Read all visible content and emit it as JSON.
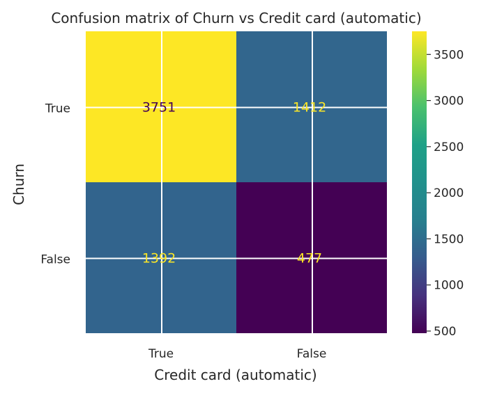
{
  "chart_data": {
    "type": "heatmap",
    "title": "Confusion matrix of Churn vs Credit card (automatic)",
    "xlabel": "Credit card (automatic)",
    "ylabel": "Churn",
    "x_categories": [
      "True",
      "False"
    ],
    "y_categories": [
      "True",
      "False"
    ],
    "values": [
      [
        3751,
        1412
      ],
      [
        1392,
        477
      ]
    ],
    "colormap": "viridis",
    "colorbar": {
      "range": [
        477,
        3751
      ],
      "ticks": [
        500,
        1000,
        1500,
        2000,
        2500,
        3000,
        3500
      ]
    },
    "grid": true,
    "text_colors": {
      "dark": "#440154",
      "light": "#fde725"
    }
  }
}
